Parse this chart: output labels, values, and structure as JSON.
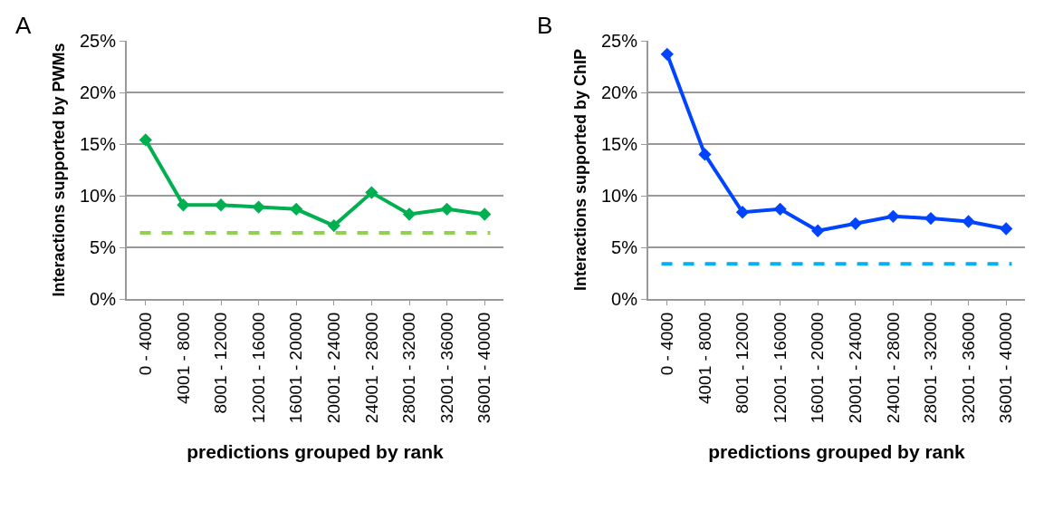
{
  "chart_data": [
    {
      "type": "line",
      "annotations": [
        "A"
      ],
      "xlabel": "predictions grouped by rank",
      "ylabel": "Interactions supported by PWMs",
      "categories": [
        "0 - 4000",
        "4001 - 8000",
        "8001 - 12000",
        "12001 - 16000",
        "16001 - 20000",
        "20001 - 24000",
        "24001 - 28000",
        "28001 - 32000",
        "32001 - 36000",
        "36001 - 40000"
      ],
      "series": [
        {
          "color": "#00b050",
          "values": [
            15.4,
            9.1,
            9.1,
            8.9,
            8.7,
            7.1,
            10.3,
            8.2,
            8.7,
            8.2
          ]
        }
      ],
      "ylim": [
        0,
        25
      ],
      "yticks": [
        {
          "value": 0,
          "label": "0%"
        },
        {
          "value": 5,
          "label": "5%"
        },
        {
          "value": 10,
          "label": "10%"
        },
        {
          "value": 15,
          "label": "15%"
        },
        {
          "value": 20,
          "label": "20%"
        },
        {
          "value": 25,
          "label": "25%"
        }
      ],
      "ref_lines": [
        {
          "axis": "y",
          "value": 6.4,
          "color": "#92d050",
          "line_style": "dashed"
        }
      ],
      "grid": "y",
      "marker": "diamond",
      "line_style": "solid"
    },
    {
      "type": "line",
      "annotations": [
        "B"
      ],
      "xlabel": "predictions grouped by rank",
      "ylabel": "Interactions supported by ChIP",
      "categories": [
        "0 - 4000",
        "4001 - 8000",
        "8001 - 12000",
        "12001 - 16000",
        "16001 - 20000",
        "20001 - 24000",
        "24001 - 28000",
        "28001 - 32000",
        "32001 - 36000",
        "36001 - 40000"
      ],
      "series": [
        {
          "color": "#0044ff",
          "values": [
            23.7,
            14.0,
            8.4,
            8.7,
            6.6,
            7.3,
            8.0,
            7.8,
            7.5,
            6.8
          ]
        }
      ],
      "ylim": [
        0,
        25
      ],
      "yticks": [
        {
          "value": 0,
          "label": "0%"
        },
        {
          "value": 5,
          "label": "5%"
        },
        {
          "value": 10,
          "label": "10%"
        },
        {
          "value": 15,
          "label": "15%"
        },
        {
          "value": 20,
          "label": "20%"
        },
        {
          "value": 25,
          "label": "25%"
        }
      ],
      "ref_lines": [
        {
          "axis": "y",
          "value": 3.4,
          "color": "#00b0f0",
          "line_style": "dashed"
        }
      ],
      "grid": "y",
      "marker": "diamond",
      "line_style": "solid"
    }
  ]
}
